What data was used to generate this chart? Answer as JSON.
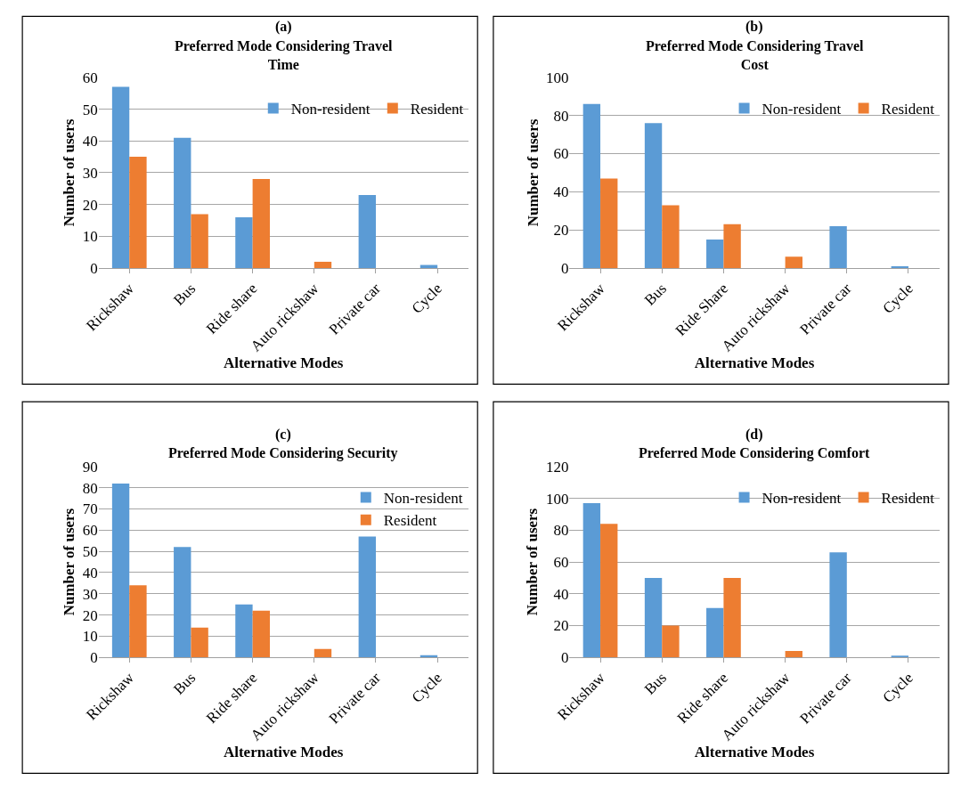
{
  "chart_data": [
    {
      "type": "bar",
      "title": "(a)",
      "subtitle": "Preferred Mode Considering Travel Time",
      "xlabel": "Alternative Modes",
      "ylabel": "Number of users",
      "categories": [
        "Rickshaw",
        "Bus",
        "Ride share",
        "Auto rickshaw",
        "Private car",
        "Cycle"
      ],
      "series": [
        {
          "name": "Non-resident",
          "color": "#5b9bd5",
          "values": [
            57,
            41,
            16,
            0,
            23,
            1
          ]
        },
        {
          "name": "Resident",
          "color": "#ed7d31",
          "values": [
            35,
            17,
            28,
            2,
            0,
            0
          ]
        }
      ],
      "ylim": [
        0,
        60
      ],
      "yticks": [
        0,
        10,
        20,
        30,
        40,
        50,
        60
      ],
      "grid": "y",
      "legend": "top right"
    },
    {
      "type": "bar",
      "title": "(b)",
      "subtitle": "Preferred Mode Considering Travel Cost",
      "xlabel": "Alternative Modes",
      "ylabel": "Number of users",
      "categories": [
        "Rickshaw",
        "Bus",
        "Ride Share",
        "Auto rickshaw",
        "Private car",
        "Cycle"
      ],
      "series": [
        {
          "name": "Non-resident",
          "color": "#5b9bd5",
          "values": [
            86,
            76,
            15,
            0,
            22,
            1
          ]
        },
        {
          "name": "Resident",
          "color": "#ed7d31",
          "values": [
            47,
            33,
            23,
            6,
            0,
            0
          ]
        }
      ],
      "ylim": [
        0,
        100
      ],
      "yticks": [
        0,
        20,
        40,
        60,
        80,
        100
      ],
      "grid": "y",
      "legend": "top right"
    },
    {
      "type": "bar",
      "title": "(c)",
      "subtitle": "Preferred Mode Considering Security",
      "xlabel": "Alternative Modes",
      "ylabel": "Number of users",
      "categories": [
        "Rickshaw",
        "Bus",
        "Ride share",
        "Auto rickshaw",
        "Private car",
        "Cycle"
      ],
      "series": [
        {
          "name": "Non-resident",
          "color": "#5b9bd5",
          "values": [
            82,
            52,
            25,
            0,
            57,
            1
          ]
        },
        {
          "name": "Resident",
          "color": "#ed7d31",
          "values": [
            34,
            14,
            22,
            4,
            0,
            0
          ]
        }
      ],
      "ylim": [
        0,
        90
      ],
      "yticks": [
        0,
        10,
        20,
        30,
        40,
        50,
        60,
        70,
        80,
        90
      ],
      "grid": "y",
      "legend": "top right"
    },
    {
      "type": "bar",
      "title": "(d)",
      "subtitle": "Preferred Mode Considering Comfort",
      "xlabel": "Alternative Modes",
      "ylabel": "Number of users",
      "categories": [
        "Rickshaw",
        "Bus",
        "Ride share",
        "Auto rickshaw",
        "Private car",
        "Cycle"
      ],
      "series": [
        {
          "name": "Non-resident",
          "color": "#5b9bd5",
          "values": [
            97,
            50,
            31,
            0,
            66,
            1
          ]
        },
        {
          "name": "Resident",
          "color": "#ed7d31",
          "values": [
            84,
            20,
            50,
            4,
            0,
            0
          ]
        }
      ],
      "ylim": [
        0,
        120
      ],
      "yticks": [
        0,
        20,
        40,
        60,
        80,
        100,
        120
      ],
      "grid": "y",
      "legend": "top right"
    }
  ]
}
